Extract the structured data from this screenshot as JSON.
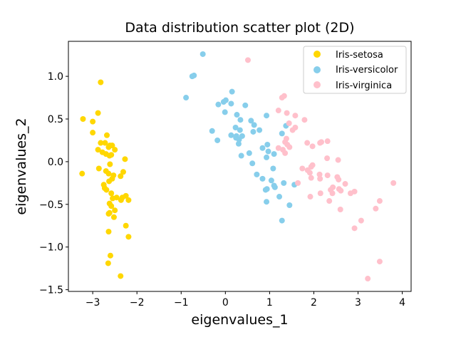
{
  "chart_data": {
    "type": "scatter",
    "title": "Data distribution scatter plot (2D)",
    "xlabel": "eigenvalues_1",
    "ylabel": "eigenvalues_2",
    "xlim": [
      -3.55,
      4.2
    ],
    "ylim": [
      -1.52,
      1.41
    ],
    "xticks": [
      -3,
      -2,
      -1,
      0,
      1,
      2,
      3,
      4
    ],
    "xtick_labels": [
      "−3",
      "−2",
      "−1",
      "0",
      "1",
      "2",
      "3",
      "4"
    ],
    "yticks": [
      -1.5,
      -1.0,
      -0.5,
      0.0,
      0.5,
      1.0
    ],
    "ytick_labels": [
      "−1.5",
      "−1.0",
      "−0.5",
      "0.0",
      "0.5",
      "1.0"
    ],
    "grid": false,
    "legend_position": "top-right",
    "series": [
      {
        "name": "Iris-setosa",
        "color": "#ffd700",
        "points": [
          [
            -2.82,
            0.93
          ],
          [
            -3.22,
            0.5
          ],
          [
            -2.88,
            0.57
          ],
          [
            -3.0,
            0.47
          ],
          [
            -3.0,
            0.34
          ],
          [
            -2.68,
            0.31
          ],
          [
            -2.82,
            0.22
          ],
          [
            -2.72,
            0.22
          ],
          [
            -2.56,
            0.19
          ],
          [
            -2.5,
            0.14
          ],
          [
            -2.64,
            0.17
          ],
          [
            -2.61,
            0.19
          ],
          [
            -2.88,
            0.14
          ],
          [
            -2.78,
            0.11
          ],
          [
            -2.7,
            0.09
          ],
          [
            -2.58,
            0.08
          ],
          [
            -2.62,
            0.07
          ],
          [
            -2.27,
            0.03
          ],
          [
            -3.24,
            -0.14
          ],
          [
            -2.86,
            -0.08
          ],
          [
            -2.61,
            -0.03
          ],
          [
            -2.7,
            -0.11
          ],
          [
            -2.64,
            -0.14
          ],
          [
            -2.53,
            -0.16
          ],
          [
            -2.56,
            -0.2
          ],
          [
            -2.31,
            -0.12
          ],
          [
            -2.37,
            -0.17
          ],
          [
            -2.63,
            -0.23
          ],
          [
            -2.75,
            -0.27
          ],
          [
            -2.69,
            -0.33
          ],
          [
            -2.58,
            -0.37
          ],
          [
            -2.55,
            -0.43
          ],
          [
            -2.25,
            -0.4
          ],
          [
            -2.33,
            -0.42
          ],
          [
            -2.19,
            -0.45
          ],
          [
            -2.62,
            -0.49
          ],
          [
            -2.58,
            -0.52
          ],
          [
            -2.5,
            -0.57
          ],
          [
            -2.62,
            -0.6
          ],
          [
            -2.52,
            -0.65
          ],
          [
            -2.25,
            -0.75
          ],
          [
            -2.64,
            -0.82
          ],
          [
            -2.19,
            -0.88
          ],
          [
            -2.6,
            -1.1
          ],
          [
            -2.65,
            -1.19
          ],
          [
            -2.37,
            -1.34
          ],
          [
            -2.64,
            -0.61
          ],
          [
            -2.46,
            -0.42
          ],
          [
            -2.73,
            -0.31
          ],
          [
            -2.36,
            -0.45
          ]
        ]
      },
      {
        "name": "Iris-versicolor",
        "color": "#87ceeb",
        "points": [
          [
            -0.51,
            1.26
          ],
          [
            -0.71,
            1.01
          ],
          [
            -0.75,
            1.0
          ],
          [
            -0.89,
            0.75
          ],
          [
            0.15,
            0.82
          ],
          [
            0.01,
            0.72
          ],
          [
            -0.04,
            0.7
          ],
          [
            -0.16,
            0.67
          ],
          [
            0.13,
            0.68
          ],
          [
            0.45,
            0.66
          ],
          [
            0.26,
            0.55
          ],
          [
            -0.01,
            0.58
          ],
          [
            0.34,
            0.49
          ],
          [
            0.65,
            0.43
          ],
          [
            0.93,
            0.54
          ],
          [
            0.58,
            0.48
          ],
          [
            0.23,
            0.4
          ],
          [
            0.33,
            0.37
          ],
          [
            -0.3,
            0.36
          ],
          [
            0.63,
            0.35
          ],
          [
            0.77,
            0.37
          ],
          [
            0.13,
            0.31
          ],
          [
            0.24,
            0.28
          ],
          [
            0.38,
            0.3
          ],
          [
            0.31,
            0.26
          ],
          [
            -0.18,
            0.25
          ],
          [
            0.25,
            0.3
          ],
          [
            1.37,
            0.42
          ],
          [
            1.28,
            0.33
          ],
          [
            0.95,
            0.2
          ],
          [
            0.3,
            0.21
          ],
          [
            0.84,
            0.16
          ],
          [
            0.97,
            0.12
          ],
          [
            0.54,
            0.1
          ],
          [
            1.1,
            0.09
          ],
          [
            0.36,
            0.07
          ],
          [
            0.93,
            0.05
          ],
          [
            0.61,
            -0.02
          ],
          [
            1.08,
            -0.08
          ],
          [
            0.71,
            -0.15
          ],
          [
            0.84,
            -0.2
          ],
          [
            1.04,
            -0.22
          ],
          [
            1.32,
            -0.25
          ],
          [
            1.56,
            -0.27
          ],
          [
            1.1,
            -0.28
          ],
          [
            0.94,
            -0.32
          ],
          [
            0.91,
            -0.33
          ],
          [
            1.22,
            -0.41
          ],
          [
            0.93,
            -0.47
          ],
          [
            1.45,
            -0.51
          ],
          [
            1.28,
            -0.69
          ],
          [
            1.12,
            -0.3
          ]
        ]
      },
      {
        "name": "Iris-virginica",
        "color": "#ffc0cb",
        "points": [
          [
            0.51,
            1.19
          ],
          [
            1.33,
            0.77
          ],
          [
            1.28,
            0.75
          ],
          [
            1.2,
            0.6
          ],
          [
            1.39,
            0.57
          ],
          [
            1.58,
            0.54
          ],
          [
            1.79,
            0.49
          ],
          [
            1.44,
            0.45
          ],
          [
            1.58,
            0.4
          ],
          [
            1.52,
            0.37
          ],
          [
            1.38,
            0.27
          ],
          [
            1.35,
            0.23
          ],
          [
            1.85,
            0.22
          ],
          [
            1.4,
            0.2
          ],
          [
            1.45,
            0.17
          ],
          [
            1.2,
            0.16
          ],
          [
            1.3,
            0.14
          ],
          [
            1.35,
            0.1
          ],
          [
            1.97,
            0.18
          ],
          [
            2.14,
            0.22
          ],
          [
            2.17,
            0.23
          ],
          [
            2.31,
            0.24
          ],
          [
            2.3,
            0.04
          ],
          [
            2.55,
            0.02
          ],
          [
            1.97,
            -0.04
          ],
          [
            1.94,
            -0.06
          ],
          [
            1.74,
            -0.08
          ],
          [
            1.86,
            -0.1
          ],
          [
            1.91,
            -0.13
          ],
          [
            2.13,
            -0.15
          ],
          [
            2.31,
            -0.16
          ],
          [
            2.53,
            -0.18
          ],
          [
            1.94,
            -0.19
          ],
          [
            2.14,
            -0.2
          ],
          [
            2.56,
            -0.21
          ],
          [
            2.71,
            -0.26
          ],
          [
            1.64,
            -0.25
          ],
          [
            2.43,
            -0.3
          ],
          [
            2.38,
            -0.33
          ],
          [
            2.57,
            -0.32
          ],
          [
            2.61,
            -0.34
          ],
          [
            2.83,
            -0.37
          ],
          [
            2.92,
            -0.35
          ],
          [
            2.15,
            -0.37
          ],
          [
            2.42,
            -0.37
          ],
          [
            1.92,
            -0.41
          ],
          [
            2.35,
            -0.46
          ],
          [
            3.49,
            -0.46
          ],
          [
            3.8,
            -0.25
          ],
          [
            2.6,
            -0.56
          ],
          [
            3.4,
            -0.55
          ],
          [
            3.07,
            -0.69
          ],
          [
            2.92,
            -0.78
          ],
          [
            3.49,
            -1.17
          ],
          [
            3.22,
            -1.37
          ]
        ]
      }
    ]
  }
}
